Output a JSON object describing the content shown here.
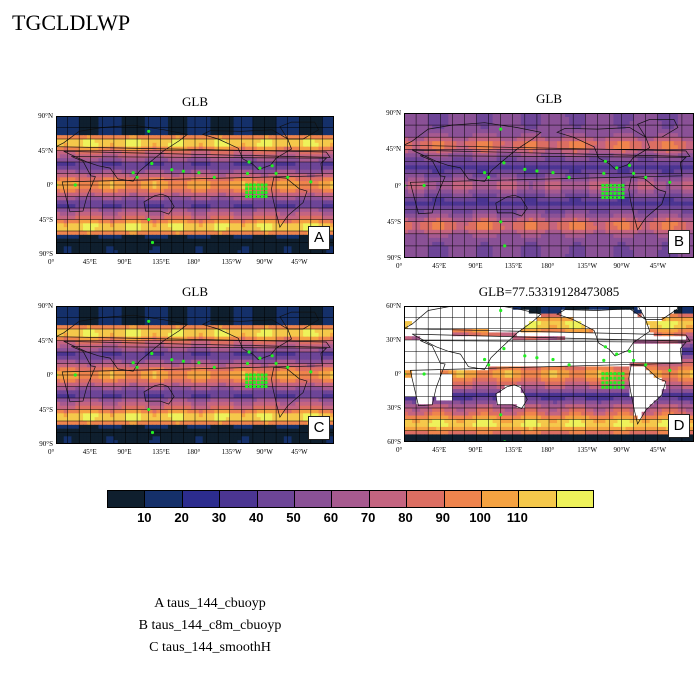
{
  "page_title": "TGCLDLWP",
  "panels": [
    {
      "id": "A",
      "title": "GLB",
      "tag": "A",
      "lat_ticks": [
        "90°N",
        "45°N",
        "0°",
        "45°S",
        "90°S"
      ],
      "lon_ticks": [
        "0°",
        "45°E",
        "90°E",
        "135°E",
        "180°",
        "135°W",
        "90°W",
        "45°W"
      ]
    },
    {
      "id": "B",
      "title": "GLB",
      "tag": "B",
      "lat_ticks": [
        "90°N",
        "45°N",
        "0°",
        "45°S",
        "90°S"
      ],
      "lon_ticks": [
        "0°",
        "45°E",
        "90°E",
        "135°E",
        "180°",
        "135°W",
        "90°W",
        "45°W"
      ]
    },
    {
      "id": "C",
      "title": "GLB",
      "tag": "C",
      "lat_ticks": [
        "90°N",
        "45°N",
        "0°",
        "45°S",
        "90°S"
      ],
      "lon_ticks": [
        "0°",
        "45°E",
        "90°E",
        "135°E",
        "180°",
        "135°W",
        "90°W",
        "45°W"
      ]
    },
    {
      "id": "D",
      "title": "GLB=77.53319128473085",
      "tag": "D",
      "lat_ticks": [
        "60°N",
        "30°N",
        "0°",
        "30°S",
        "60°S"
      ],
      "lon_ticks": [
        "0°",
        "45°E",
        "90°E",
        "135°E",
        "180°",
        "135°W",
        "90°W",
        "45°W"
      ]
    }
  ],
  "colorbar": {
    "colors": [
      "#0f1f2e",
      "#15306a",
      "#2c2c8e",
      "#4b3592",
      "#6d4597",
      "#8a5196",
      "#a75a8f",
      "#c46480",
      "#dc6e62",
      "#ef844d",
      "#f5a241",
      "#f5c84b",
      "#eef25a"
    ],
    "labels": [
      "10",
      "20",
      "30",
      "40",
      "50",
      "60",
      "70",
      "80",
      "90",
      "100",
      "110"
    ]
  },
  "legend": [
    "A  taus_144_cbuoyp",
    "B  taus_144_c8m_cbuoyp",
    "C  taus_144_smoothH"
  ],
  "chart_data": {
    "type": "heatmap",
    "title": "TGCLDLWP",
    "variable": "TGCLDLWP",
    "panels": [
      {
        "label": "A",
        "title": "GLB",
        "case": "taus_144_cbuoyp",
        "lat_range": [
          -90,
          90
        ],
        "lon_range": [
          0,
          360
        ]
      },
      {
        "label": "B",
        "title": "GLB",
        "case": "taus_144_c8m_cbuoyp",
        "lat_range": [
          -90,
          90
        ],
        "lon_range": [
          0,
          360
        ]
      },
      {
        "label": "C",
        "title": "GLB",
        "case": "taus_144_smoothH",
        "lat_range": [
          -90,
          90
        ],
        "lon_range": [
          0,
          360
        ]
      },
      {
        "label": "D",
        "title": "GLB=77.53319128473085",
        "global_mean": 77.53319128473085,
        "lat_range": [
          -75,
          75
        ],
        "lon_range": [
          0,
          360
        ]
      }
    ],
    "colorbar_levels": [
      10,
      20,
      30,
      40,
      50,
      60,
      70,
      80,
      90,
      100,
      110
    ]
  }
}
